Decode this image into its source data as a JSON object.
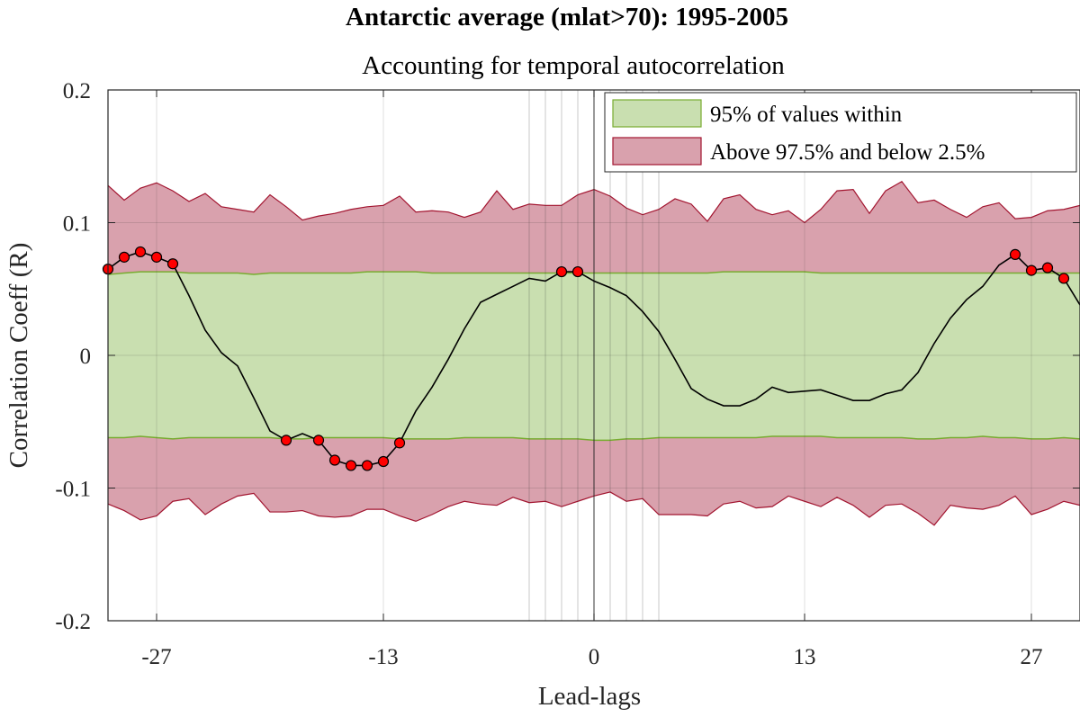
{
  "chart_data": {
    "type": "line",
    "title": "Antarctic average (mlat>70): 1995-2005",
    "subtitle": "Accounting for temporal autocorrelation",
    "xlabel": "Lead-lags",
    "ylabel": "Correlation Coeff (R)",
    "xlim": [
      -30,
      30
    ],
    "ylim": [
      -0.2,
      0.2
    ],
    "x_ticks": [
      -27,
      -13,
      0,
      13,
      27
    ],
    "x_tick_labels": [
      "-27",
      "-13",
      "0",
      "13",
      "27"
    ],
    "y_ticks": [
      -0.2,
      -0.1,
      0,
      0.1,
      0.2
    ],
    "y_tick_labels": [
      "-0.2",
      "-0.1",
      "0",
      "0.1",
      "0.2"
    ],
    "extra_vlines": [
      -4,
      -3,
      -2,
      -1,
      1,
      2,
      3,
      4
    ],
    "grid": true,
    "legend_position": "top-right",
    "legend": [
      {
        "label": "95% of values within",
        "color": "#c9dfb0",
        "edge": "#77ac30"
      },
      {
        "label": "Above 97.5% and below 2.5%",
        "color": "#d9a1ad",
        "edge": "#a2142f"
      }
    ],
    "x": [
      -30,
      -29,
      -28,
      -27,
      -26,
      -25,
      -24,
      -23,
      -22,
      -21,
      -20,
      -19,
      -18,
      -17,
      -16,
      -15,
      -14,
      -13,
      -12,
      -11,
      -10,
      -9,
      -8,
      -7,
      -6,
      -5,
      -4,
      -3,
      -2,
      -1,
      0,
      1,
      2,
      3,
      4,
      5,
      6,
      7,
      8,
      9,
      10,
      11,
      12,
      13,
      14,
      15,
      16,
      17,
      18,
      19,
      20,
      21,
      22,
      23,
      24,
      25,
      26,
      27,
      28,
      29,
      30
    ],
    "series": [
      {
        "values": [
          0.065,
          0.074,
          0.078,
          0.074,
          0.069,
          0.045,
          0.019,
          0.002,
          -0.008,
          -0.032,
          -0.057,
          -0.064,
          -0.059,
          -0.064,
          -0.079,
          -0.083,
          -0.083,
          -0.08,
          -0.066,
          -0.042,
          -0.024,
          -0.003,
          0.02,
          0.04,
          0.046,
          0.052,
          0.058,
          0.056,
          0.063,
          0.063,
          0.056,
          0.051,
          0.045,
          0.033,
          0.018,
          -0.003,
          -0.025,
          -0.033,
          -0.038,
          -0.038,
          -0.033,
          -0.024,
          -0.028,
          -0.027,
          -0.026,
          -0.03,
          -0.034,
          -0.034,
          -0.029,
          -0.026,
          -0.013,
          0.009,
          0.028,
          0.042,
          0.052,
          0.068,
          0.076,
          0.064,
          0.066,
          0.058,
          0.038
        ]
      }
    ],
    "significant_x": [
      -30,
      -29,
      -28,
      -27,
      -26,
      -19,
      -17,
      -16,
      -15,
      -14,
      -13,
      -12,
      -2,
      -1,
      26,
      27,
      28,
      29
    ],
    "band_95": {
      "upper": [
        0.061,
        0.062,
        0.063,
        0.063,
        0.063,
        0.062,
        0.062,
        0.062,
        0.062,
        0.061,
        0.062,
        0.062,
        0.062,
        0.062,
        0.062,
        0.062,
        0.063,
        0.063,
        0.063,
        0.063,
        0.062,
        0.062,
        0.062,
        0.062,
        0.062,
        0.062,
        0.062,
        0.062,
        0.062,
        0.062,
        0.062,
        0.062,
        0.062,
        0.062,
        0.062,
        0.062,
        0.062,
        0.062,
        0.063,
        0.063,
        0.063,
        0.063,
        0.063,
        0.063,
        0.062,
        0.062,
        0.062,
        0.062,
        0.062,
        0.062,
        0.062,
        0.062,
        0.062,
        0.062,
        0.062,
        0.062,
        0.062,
        0.062,
        0.062,
        0.062,
        0.062
      ],
      "lower": [
        -0.062,
        -0.062,
        -0.061,
        -0.062,
        -0.063,
        -0.062,
        -0.062,
        -0.062,
        -0.062,
        -0.062,
        -0.062,
        -0.063,
        -0.063,
        -0.062,
        -0.062,
        -0.062,
        -0.062,
        -0.062,
        -0.063,
        -0.063,
        -0.063,
        -0.063,
        -0.062,
        -0.062,
        -0.062,
        -0.062,
        -0.063,
        -0.063,
        -0.063,
        -0.063,
        -0.064,
        -0.064,
        -0.063,
        -0.063,
        -0.062,
        -0.062,
        -0.062,
        -0.062,
        -0.062,
        -0.062,
        -0.062,
        -0.061,
        -0.061,
        -0.061,
        -0.061,
        -0.062,
        -0.062,
        -0.062,
        -0.062,
        -0.062,
        -0.063,
        -0.063,
        -0.062,
        -0.062,
        -0.061,
        -0.062,
        -0.062,
        -0.063,
        -0.063,
        -0.062,
        -0.063
      ]
    },
    "band_outer": {
      "upper": [
        0.128,
        0.117,
        0.126,
        0.13,
        0.124,
        0.116,
        0.122,
        0.112,
        0.11,
        0.108,
        0.121,
        0.112,
        0.102,
        0.105,
        0.107,
        0.11,
        0.112,
        0.113,
        0.12,
        0.108,
        0.109,
        0.108,
        0.104,
        0.108,
        0.124,
        0.11,
        0.114,
        0.113,
        0.113,
        0.121,
        0.125,
        0.12,
        0.111,
        0.106,
        0.11,
        0.118,
        0.114,
        0.101,
        0.118,
        0.121,
        0.11,
        0.106,
        0.109,
        0.1,
        0.11,
        0.124,
        0.125,
        0.107,
        0.124,
        0.131,
        0.115,
        0.117,
        0.11,
        0.104,
        0.112,
        0.115,
        0.103,
        0.104,
        0.109,
        0.11,
        0.113
      ],
      "lower": [
        -0.112,
        -0.117,
        -0.124,
        -0.121,
        -0.11,
        -0.108,
        -0.12,
        -0.112,
        -0.106,
        -0.104,
        -0.118,
        -0.118,
        -0.117,
        -0.121,
        -0.122,
        -0.121,
        -0.116,
        -0.116,
        -0.121,
        -0.125,
        -0.12,
        -0.114,
        -0.11,
        -0.112,
        -0.113,
        -0.107,
        -0.111,
        -0.11,
        -0.114,
        -0.11,
        -0.106,
        -0.103,
        -0.11,
        -0.108,
        -0.12,
        -0.12,
        -0.12,
        -0.121,
        -0.112,
        -0.11,
        -0.115,
        -0.114,
        -0.106,
        -0.11,
        -0.114,
        -0.107,
        -0.113,
        -0.122,
        -0.113,
        -0.112,
        -0.119,
        -0.128,
        -0.113,
        -0.115,
        -0.116,
        -0.113,
        -0.106,
        -0.12,
        -0.116,
        -0.11,
        -0.113
      ]
    }
  }
}
